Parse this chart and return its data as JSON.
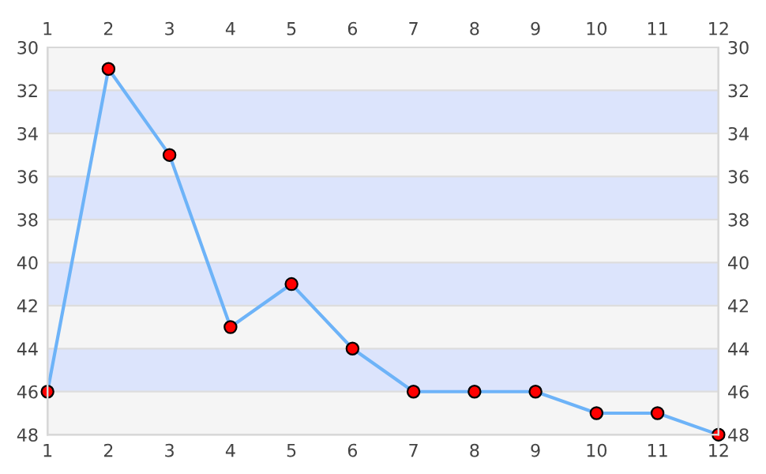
{
  "chart_data": {
    "type": "line",
    "x": [
      1,
      2,
      3,
      4,
      5,
      6,
      7,
      8,
      9,
      10,
      11,
      12
    ],
    "series": [
      {
        "color": "#6db3f8",
        "colors": [
          "#ff0000",
          "#ff0000",
          "#ff0000",
          "#ff0000",
          "#ff0000",
          "#ff0000",
          "#ff0000",
          "#ff0000",
          "#ff0000",
          "#ff0000",
          "#ff0000",
          "#ff0000"
        ],
        "values": [
          46,
          31,
          35,
          43,
          41,
          44,
          46,
          46,
          46,
          47,
          47,
          48
        ]
      }
    ],
    "xlim": [
      1,
      12
    ],
    "xticks": [
      1,
      2,
      3,
      4,
      5,
      6,
      7,
      8,
      9,
      10,
      11,
      12
    ],
    "x2lim": [
      1,
      12
    ],
    "x2ticks": [
      1,
      2,
      3,
      4,
      5,
      6,
      7,
      8,
      9,
      10,
      11,
      12
    ],
    "ylim": [
      48,
      30
    ],
    "yticks": [
      30,
      32,
      34,
      36,
      38,
      40,
      42,
      44,
      46,
      48
    ],
    "y2lim": [
      48,
      30
    ],
    "y2ticks": [
      30,
      32,
      34,
      36,
      38,
      40,
      42,
      44,
      46,
      48
    ],
    "bands": [
      {
        "axis": "y",
        "from": 32,
        "to": 34,
        "color": "#dce4fc"
      },
      {
        "axis": "y",
        "from": 36,
        "to": 38,
        "color": "#dce4fc"
      },
      {
        "axis": "y",
        "from": 40,
        "to": 42,
        "color": "#dce4fc"
      },
      {
        "axis": "y",
        "from": 44,
        "to": 46,
        "color": "#dce4fc"
      }
    ],
    "grid": "y",
    "marker": "circle",
    "line_style": "solid",
    "legend": false
  }
}
